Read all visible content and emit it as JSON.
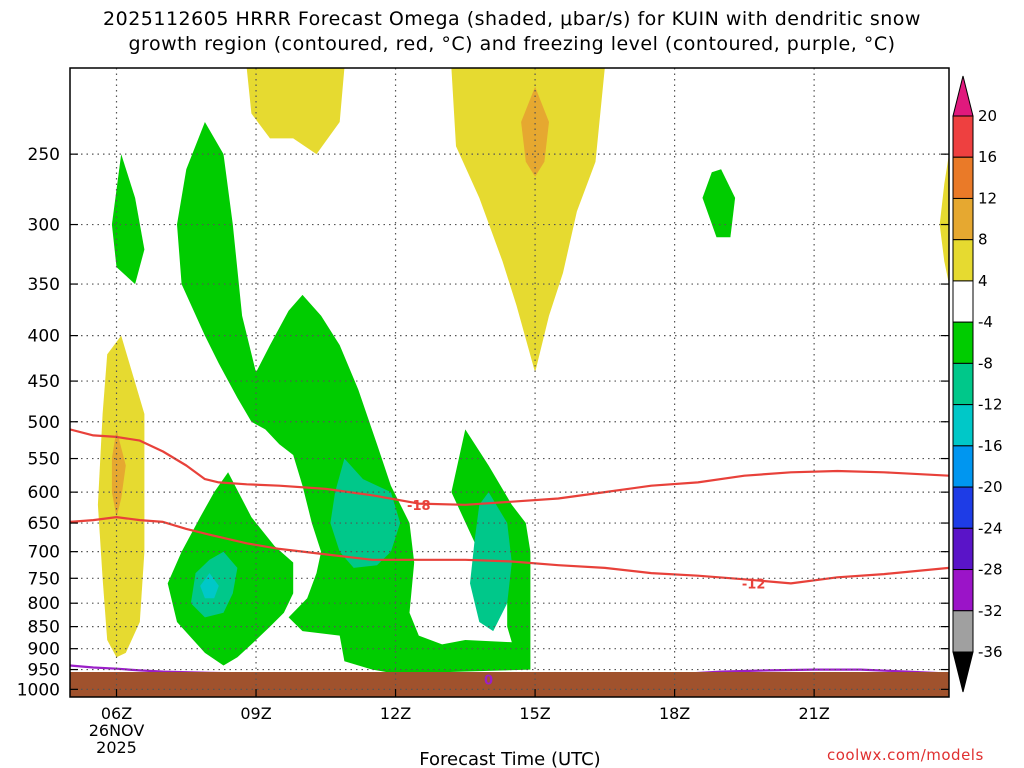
{
  "header": {
    "title_line1": "2025112605 HRRR Forecast Omega (shaded, μbar/s) for KUIN with dendritic snow",
    "title_line2": "growth region (contoured, red, °C) and freezing level (contoured, purple, °C)"
  },
  "footer": {
    "credit": "coolwx.com/models"
  },
  "colors": {
    "dgz": "#e8413a",
    "freezing": "#9b1fc8",
    "ground": "#a0522d",
    "grid": "#555555"
  },
  "chart_data": {
    "type": "heatmap",
    "title": "2025112605 HRRR Forecast Omega (shaded, μbar/s) for KUIN with dendritic snow growth region (contoured, red, °C) and freezing level (contoured, purple, °C)",
    "xlabel": "Forecast Time (UTC)",
    "ylabel": "",
    "x_range_hours": [
      5,
      23.9
    ],
    "x_ticks": [
      {
        "hour": 6,
        "label": "06Z",
        "sub1": "26NOV",
        "sub2": "2025"
      },
      {
        "hour": 9,
        "label": "09Z",
        "sub1": "",
        "sub2": ""
      },
      {
        "hour": 12,
        "label": "12Z",
        "sub1": "",
        "sub2": ""
      },
      {
        "hour": 15,
        "label": "15Z",
        "sub1": "",
        "sub2": ""
      },
      {
        "hour": 18,
        "label": "18Z",
        "sub1": "",
        "sub2": ""
      },
      {
        "hour": 21,
        "label": "21Z",
        "sub1": "",
        "sub2": ""
      }
    ],
    "y_ticks_hpa": [
      250,
      300,
      350,
      400,
      450,
      500,
      550,
      600,
      650,
      700,
      750,
      800,
      850,
      900,
      950,
      1000
    ],
    "y_range_hpa": [
      200,
      1020
    ],
    "y_scale": "inverted pressure (hPa)",
    "grid": true,
    "colorbar": {
      "labels": [
        "20",
        "16",
        "12",
        "8",
        "4",
        "-4",
        "-8",
        "-12",
        "-16",
        "-20",
        "-24",
        "-28",
        "-32",
        "-36"
      ],
      "bins": [
        {
          "range": ">20",
          "color": "#e0197d"
        },
        {
          "range": "16 to 20",
          "color": "#ee4040"
        },
        {
          "range": "12 to 16",
          "color": "#ea7a28"
        },
        {
          "range": "8 to 12",
          "color": "#e6a830"
        },
        {
          "range": "4 to 8",
          "color": "#e6da30"
        },
        {
          "range": "-4 to 4",
          "color": "#ffffff"
        },
        {
          "range": "-8 to -4",
          "color": "#00cc00"
        },
        {
          "range": "-12 to -8",
          "color": "#00c88a"
        },
        {
          "range": "-16 to -12",
          "color": "#00c8c8"
        },
        {
          "range": "-20 to -16",
          "color": "#0096f0"
        },
        {
          "range": "-24 to -20",
          "color": "#1e3ce6"
        },
        {
          "range": "-28 to -24",
          "color": "#5a14c8"
        },
        {
          "range": "-32 to -28",
          "color": "#9b14c8"
        },
        {
          "range": "-36 to -32",
          "color": "#a0a0a0"
        },
        {
          "range": "<-36",
          "color": "#000000"
        }
      ]
    },
    "shaded_regions": [
      {
        "name": "yellow-north",
        "bin": "4 to 8",
        "points": [
          [
            6.1,
            400
          ],
          [
            6.6,
            490
          ],
          [
            6.6,
            700
          ],
          [
            6.5,
            840
          ],
          [
            6.2,
            910
          ],
          [
            6.0,
            920
          ],
          [
            5.8,
            880
          ],
          [
            5.7,
            750
          ],
          [
            5.6,
            620
          ],
          [
            5.7,
            490
          ],
          [
            5.8,
            420
          ]
        ]
      },
      {
        "name": "yellow-top-left",
        "bin": "4 to 8",
        "points": [
          [
            8.8,
            200
          ],
          [
            10.9,
            200
          ],
          [
            10.8,
            230
          ],
          [
            10.3,
            250
          ],
          [
            9.8,
            240
          ],
          [
            9.3,
            240
          ],
          [
            8.9,
            225
          ]
        ]
      },
      {
        "name": "yellow-top-center",
        "bin": "4 to 8",
        "points": [
          [
            13.2,
            200
          ],
          [
            16.5,
            200
          ],
          [
            16.3,
            255
          ],
          [
            15.9,
            290
          ],
          [
            15.6,
            340
          ],
          [
            15.3,
            380
          ],
          [
            15.0,
            440
          ],
          [
            14.6,
            370
          ],
          [
            14.3,
            330
          ],
          [
            13.8,
            280
          ],
          [
            13.3,
            245
          ]
        ]
      },
      {
        "name": "yellow-right-edge",
        "bin": "4 to 8",
        "points": [
          [
            23.9,
            250
          ],
          [
            23.8,
            270
          ],
          [
            23.7,
            300
          ],
          [
            23.8,
            330
          ],
          [
            23.9,
            350
          ]
        ]
      },
      {
        "name": "orange-top-center",
        "bin": "8 to 12",
        "points": [
          [
            15.0,
            210
          ],
          [
            15.3,
            230
          ],
          [
            15.2,
            255
          ],
          [
            15.0,
            265
          ],
          [
            14.8,
            255
          ],
          [
            14.7,
            230
          ]
        ]
      },
      {
        "name": "orange-left",
        "bin": "8 to 12",
        "points": [
          [
            6.0,
            510
          ],
          [
            6.2,
            560
          ],
          [
            6.1,
            610
          ],
          [
            6.0,
            640
          ],
          [
            5.9,
            600
          ],
          [
            5.9,
            550
          ]
        ]
      },
      {
        "name": "green-small-left",
        "bin": "-8 to -4",
        "points": [
          [
            6.1,
            250
          ],
          [
            6.4,
            280
          ],
          [
            6.6,
            320
          ],
          [
            6.4,
            350
          ],
          [
            6.0,
            335
          ],
          [
            5.9,
            300
          ]
        ]
      },
      {
        "name": "green-main",
        "bin": "-8 to -4",
        "points": [
          [
            7.9,
            230
          ],
          [
            8.3,
            250
          ],
          [
            8.5,
            300
          ],
          [
            8.7,
            380
          ],
          [
            9.0,
            440
          ],
          [
            9.3,
            410
          ],
          [
            9.7,
            375
          ],
          [
            10.0,
            360
          ],
          [
            10.4,
            380
          ],
          [
            10.8,
            410
          ],
          [
            11.2,
            460
          ],
          [
            11.6,
            530
          ],
          [
            11.9,
            590
          ],
          [
            12.3,
            650
          ],
          [
            12.4,
            720
          ],
          [
            12.3,
            820
          ],
          [
            12.5,
            870
          ],
          [
            13.0,
            890
          ],
          [
            13.5,
            880
          ],
          [
            14.5,
            885
          ],
          [
            14.4,
            850
          ],
          [
            14.4,
            800
          ],
          [
            13.9,
            720
          ],
          [
            13.2,
            600
          ],
          [
            13.5,
            510
          ],
          [
            14.0,
            560
          ],
          [
            14.5,
            620
          ],
          [
            14.8,
            650
          ],
          [
            14.9,
            700
          ],
          [
            14.9,
            800
          ],
          [
            14.9,
            950
          ],
          [
            12.0,
            960
          ],
          [
            11.5,
            950
          ],
          [
            10.9,
            930
          ],
          [
            10.8,
            870
          ],
          [
            10.0,
            860
          ],
          [
            9.7,
            830
          ],
          [
            10.1,
            790
          ],
          [
            10.3,
            740
          ],
          [
            10.4,
            700
          ],
          [
            10.2,
            650
          ],
          [
            10.0,
            590
          ],
          [
            9.8,
            545
          ],
          [
            9.5,
            530
          ],
          [
            9.2,
            510
          ],
          [
            8.9,
            500
          ],
          [
            8.6,
            470
          ],
          [
            8.2,
            430
          ],
          [
            7.9,
            400
          ],
          [
            7.4,
            350
          ],
          [
            7.3,
            300
          ],
          [
            7.5,
            260
          ]
        ]
      },
      {
        "name": "green-lower-left",
        "bin": "-8 to -4",
        "points": [
          [
            8.4,
            570
          ],
          [
            8.9,
            640
          ],
          [
            9.4,
            690
          ],
          [
            9.8,
            720
          ],
          [
            9.8,
            780
          ],
          [
            9.6,
            820
          ],
          [
            9.3,
            850
          ],
          [
            8.9,
            890
          ],
          [
            8.6,
            920
          ],
          [
            8.3,
            940
          ],
          [
            7.9,
            910
          ],
          [
            7.3,
            840
          ],
          [
            7.1,
            760
          ],
          [
            7.4,
            700
          ],
          [
            7.8,
            640
          ],
          [
            8.1,
            600
          ]
        ]
      },
      {
        "name": "green-small-right",
        "bin": "-8 to -4",
        "points": [
          [
            19.0,
            260
          ],
          [
            19.3,
            280
          ],
          [
            19.2,
            310
          ],
          [
            18.9,
            310
          ],
          [
            18.6,
            280
          ],
          [
            18.8,
            262
          ]
        ]
      },
      {
        "name": "teal-center-left",
        "bin": "-12 to -8",
        "points": [
          [
            10.9,
            550
          ],
          [
            11.3,
            580
          ],
          [
            11.9,
            600
          ],
          [
            12.1,
            650
          ],
          [
            11.9,
            700
          ],
          [
            11.6,
            725
          ],
          [
            11.1,
            730
          ],
          [
            10.8,
            700
          ],
          [
            10.6,
            650
          ],
          [
            10.7,
            600
          ]
        ]
      },
      {
        "name": "teal-center-right",
        "bin": "-12 to -8",
        "points": [
          [
            14.0,
            600
          ],
          [
            14.4,
            650
          ],
          [
            14.5,
            720
          ],
          [
            14.4,
            800
          ],
          [
            14.1,
            860
          ],
          [
            13.8,
            840
          ],
          [
            13.6,
            760
          ],
          [
            13.7,
            680
          ],
          [
            13.8,
            620
          ]
        ]
      },
      {
        "name": "teal-lower-left",
        "bin": "-12 to -8",
        "points": [
          [
            8.3,
            700
          ],
          [
            8.6,
            730
          ],
          [
            8.5,
            780
          ],
          [
            8.3,
            820
          ],
          [
            7.9,
            830
          ],
          [
            7.6,
            800
          ],
          [
            7.7,
            740
          ],
          [
            8.0,
            715
          ]
        ]
      },
      {
        "name": "cyan-lower-left",
        "bin": "-16 to -12",
        "points": [
          [
            8.0,
            740
          ],
          [
            8.2,
            765
          ],
          [
            8.1,
            790
          ],
          [
            7.9,
            790
          ],
          [
            7.8,
            765
          ]
        ]
      }
    ],
    "series": [
      {
        "name": "-18",
        "color": "#e8413a",
        "label_hour": 12.5,
        "label_hpa": 620,
        "x": [
          5,
          5.5,
          6,
          6.5,
          7,
          7.5,
          7.9,
          8.2,
          8.8,
          9.5,
          10.5,
          11.5,
          12.5,
          13.5,
          14.5,
          15.5,
          16.5,
          17.5,
          18.5,
          19.5,
          20.5,
          21.5,
          22.5,
          23.9
        ],
        "y": [
          510,
          518,
          520,
          525,
          540,
          560,
          580,
          585,
          588,
          590,
          595,
          605,
          618,
          620,
          615,
          610,
          600,
          590,
          585,
          575,
          570,
          568,
          570,
          575
        ]
      },
      {
        "name": "-12",
        "color": "#e8413a",
        "label_hour": 19.7,
        "label_hpa": 760,
        "x": [
          5,
          5.5,
          6,
          6.5,
          7,
          7.5,
          8,
          8.8,
          9.5,
          10.5,
          11.5,
          12.5,
          13.5,
          14.5,
          15.5,
          16.5,
          17.5,
          18.5,
          19.5,
          20.5,
          21.5,
          22.5,
          23.9
        ],
        "y": [
          648,
          645,
          640,
          645,
          648,
          660,
          670,
          685,
          695,
          705,
          715,
          715,
          715,
          718,
          725,
          730,
          740,
          745,
          752,
          760,
          748,
          742,
          730
        ]
      },
      {
        "name": "0",
        "color": "#9b1fc8",
        "label_hour": 14.0,
        "label_hpa": 975,
        "x": [
          5,
          5.5,
          6,
          6.5,
          7,
          8,
          9,
          10,
          11,
          12,
          13,
          14,
          15,
          16,
          17,
          18,
          19,
          20,
          21,
          22,
          23,
          23.9
        ],
        "y": [
          940,
          945,
          948,
          952,
          955,
          958,
          960,
          960,
          960,
          962,
          965,
          970,
          970,
          970,
          968,
          962,
          955,
          952,
          950,
          950,
          955,
          960
        ]
      }
    ]
  }
}
